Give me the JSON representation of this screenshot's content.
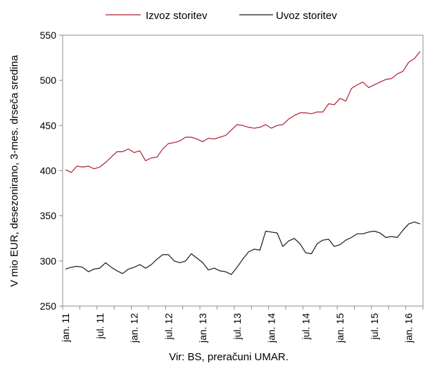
{
  "chart_data": {
    "type": "line",
    "ylabel": "V mio EUR, desezonirano, 3-mes. drseča sredina",
    "source": "Vir: BS, preračuni UMAR.",
    "ylim": [
      250,
      550
    ],
    "yticks": [
      250,
      300,
      350,
      400,
      450,
      500,
      550
    ],
    "grid": false,
    "legend_position": "top",
    "start": "2011-01",
    "xtick_labels": [
      "jan. 11",
      "jul. 11",
      "jan. 12",
      "jul. 12",
      "jan. 13",
      "jul. 13",
      "jan. 14",
      "jul. 14",
      "jan. 15",
      "jul. 15",
      "jan. 16"
    ],
    "series": [
      {
        "name": "Izvoz storitev",
        "color": "#b01f35",
        "values": [
          401,
          398,
          405,
          404,
          405,
          402,
          404,
          409,
          415,
          421,
          421,
          424,
          420,
          422,
          411,
          414,
          415,
          424,
          430,
          431,
          433,
          437,
          437,
          435,
          432,
          436,
          435,
          437,
          439,
          445,
          451,
          450,
          448,
          447,
          448,
          451,
          447,
          450,
          451,
          457,
          461,
          464,
          464,
          463,
          465,
          465,
          474,
          473,
          480,
          477,
          491,
          495,
          498,
          492,
          495,
          498,
          501,
          502,
          507,
          510,
          520,
          524,
          532
        ]
      },
      {
        "name": "Uvoz storitev",
        "color": "#1a1a1a",
        "values": [
          291,
          293,
          294,
          293,
          288,
          291,
          292,
          298,
          293,
          289,
          286,
          291,
          293,
          296,
          292,
          296,
          302,
          307,
          307,
          300,
          298,
          300,
          308,
          303,
          298,
          290,
          292,
          289,
          288,
          285,
          293,
          302,
          310,
          313,
          312,
          333,
          332,
          331,
          316,
          322,
          325,
          319,
          309,
          308,
          319,
          323,
          324,
          316,
          318,
          323,
          326,
          330,
          330,
          332,
          333,
          331,
          326,
          327,
          326,
          334,
          341,
          343,
          341
        ]
      }
    ]
  }
}
